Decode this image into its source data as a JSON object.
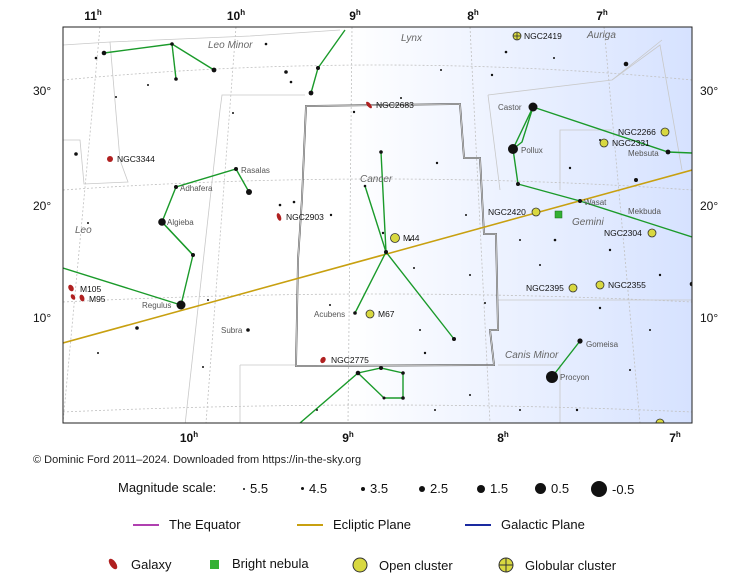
{
  "ra_labels": {
    "top": [
      {
        "h": "11",
        "u": "h"
      },
      {
        "h": "10",
        "u": "h"
      },
      {
        "h": "9",
        "u": "h"
      },
      {
        "h": "8",
        "u": "h"
      },
      {
        "h": "7",
        "u": "h"
      }
    ],
    "bottom": [
      {
        "h": "10",
        "u": "h"
      },
      {
        "h": "9",
        "u": "h"
      },
      {
        "h": "8",
        "u": "h"
      },
      {
        "h": "7",
        "u": "h"
      }
    ]
  },
  "dec_labels": [
    "30°",
    "20°",
    "10°"
  ],
  "constellations": [
    "Leo Minor",
    "Lynx",
    "Auriga",
    "Cancer",
    "Leo",
    "Gemini",
    "Canis Minor"
  ],
  "star_names": [
    "Castor",
    "Pollux",
    "Mebsuta",
    "Wasat",
    "Mekbuda",
    "Rasalas",
    "Adhafera",
    "Algieba",
    "Regulus",
    "Subra",
    "Acubens",
    "Gomeisa",
    "Procyon"
  ],
  "objects": {
    "galaxies": [
      "NGC2683",
      "NGC3344",
      "NGC2903",
      "M105",
      "M95",
      "NGC2775"
    ],
    "open_clusters": [
      "NGC2266",
      "NGC2331",
      "NGC2420",
      "M44",
      "NGC2304",
      "NGC2395",
      "NGC2355",
      "M67"
    ],
    "globular_clusters": [
      "NGC2419"
    ]
  },
  "copyright": "© Dominic Ford 2011–2024. Downloaded from https://in-the-sky.org",
  "legend": {
    "magnitude_title": "Magnitude scale:",
    "magnitudes": [
      "5.5",
      "4.5",
      "3.5",
      "2.5",
      "1.5",
      "0.5",
      "-0.5"
    ],
    "lines": [
      {
        "label": "The Equator",
        "color": "#b040b0"
      },
      {
        "label": "Ecliptic Plane",
        "color": "#c8a010"
      },
      {
        "label": "Galactic Plane",
        "color": "#1a2aa0"
      }
    ],
    "symbols": [
      "Galaxy",
      "Bright nebula",
      "Open cluster",
      "Globular cluster"
    ]
  },
  "colors": {
    "constellation_lines": "#1a9a2a",
    "galaxy": "#b02020",
    "nebula": "#33b033",
    "cluster": "#d8d840",
    "ecliptic": "#c8a010",
    "boundary": "#c8c8c8",
    "milky_way": "#dde7ff"
  }
}
